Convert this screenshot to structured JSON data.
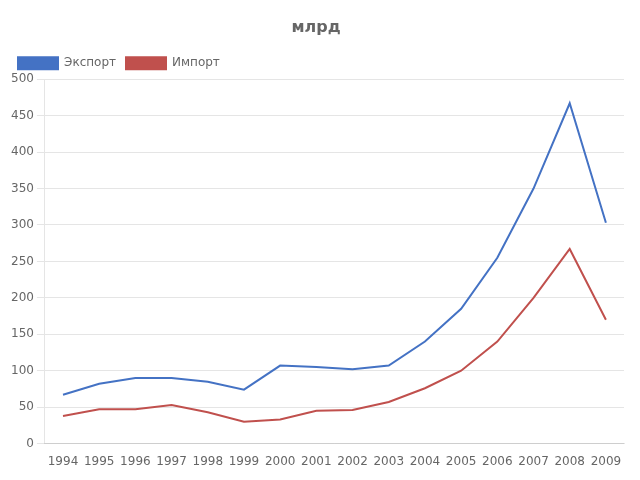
{
  "chart_data": {
    "type": "line",
    "title": "млрд",
    "x": [
      1994,
      1995,
      1996,
      1997,
      1998,
      1999,
      2000,
      2001,
      2002,
      2003,
      2004,
      2005,
      2006,
      2007,
      2008,
      2009
    ],
    "series": [
      {
        "name": "Экспорт",
        "color": "#4472C4",
        "values": [
          67,
          82,
          90,
          90,
          85,
          74,
          107,
          105,
          102,
          107,
          140,
          185,
          255,
          350,
          467,
          303
        ]
      },
      {
        "name": "Импорт",
        "color": "#C0504D",
        "values": [
          38,
          47,
          47,
          53,
          43,
          30,
          33,
          45,
          46,
          57,
          76,
          100,
          140,
          200,
          267,
          170
        ]
      }
    ],
    "xlim": [
      1993.5,
      2009.5
    ],
    "xticks": [
      1994,
      1995,
      1996,
      1997,
      1998,
      1999,
      2000,
      2001,
      2002,
      2003,
      2004,
      2005,
      2006,
      2007,
      2008,
      2009
    ],
    "ylim": [
      0,
      500
    ],
    "yticks": [
      0,
      50,
      100,
      150,
      200,
      250,
      300,
      350,
      400,
      450,
      500
    ],
    "grid": "y",
    "legend": "upper left"
  }
}
